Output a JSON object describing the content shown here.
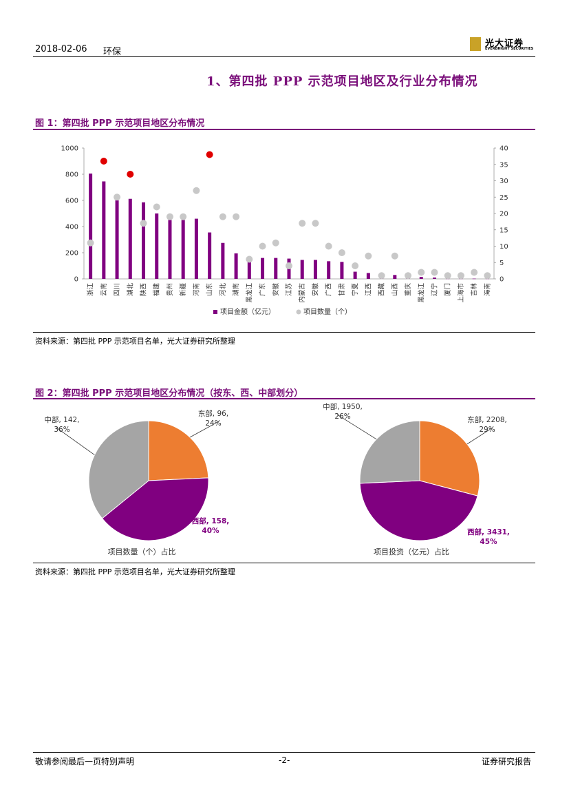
{
  "header": {
    "date": "2018-02-06",
    "sector": "环保",
    "logo_cn": "光大证券",
    "logo_en": "EVERBRIGHT SECURITIES"
  },
  "section_title": "1、第四批 PPP 示范项目地区及行业分布情况",
  "fig1": {
    "title": "图 1：第四批 PPP 示范项目地区分布情况",
    "source": "资料来源：第四批 PPP 示范项目名单，光大证券研究所整理"
  },
  "fig2": {
    "title": "图 2：第四批 PPP 示范项目地区分布情况（按东、西、中部划分）",
    "source": "资料来源：第四批 PPP 示范项目名单，光大证券研究所整理"
  },
  "footer": {
    "left": "敬请参阅最后一页特别声明",
    "center": "-2-",
    "right": "证券研究报告"
  },
  "colors": {
    "accent": "#7a0f7a",
    "bar": "#800080",
    "dot_gray": "#c8c8c8",
    "dot_red": "#e00000",
    "pie_orange": "#ed7d31",
    "pie_purple": "#800080",
    "pie_gray": "#a5a5a5"
  },
  "chart_data": [
    {
      "type": "bar",
      "categories": [
        "浙江",
        "云南",
        "四川",
        "湖北",
        "陕西",
        "福建",
        "贵州",
        "新疆",
        "河南",
        "山东",
        "河北",
        "湖南",
        "黑龙江",
        "广东",
        "安徽",
        "江苏",
        "内蒙古",
        "安徽",
        "广西",
        "甘肃",
        "宁夏",
        "江西",
        "西藏",
        "山西",
        "重庆",
        "黑龙江",
        "辽宁",
        "厦门",
        "上海市",
        "吉林",
        "海南"
      ],
      "series": [
        {
          "name": "项目金额（亿元）",
          "type": "bar",
          "axis": "left",
          "values": [
            805,
            745,
            600,
            612,
            585,
            500,
            450,
            450,
            460,
            355,
            275,
            195,
            170,
            160,
            160,
            155,
            145,
            145,
            135,
            130,
            55,
            45,
            10,
            30,
            5,
            15,
            10,
            2,
            2,
            2,
            2
          ]
        },
        {
          "name": "项目数量（个）",
          "type": "scatter",
          "axis": "right",
          "values": [
            11,
            36,
            25,
            32,
            17,
            22,
            19,
            19,
            27,
            38,
            19,
            19,
            6,
            10,
            11,
            4,
            17,
            17,
            10,
            8,
            4,
            7,
            1,
            7,
            1,
            2,
            2,
            1,
            1,
            2,
            1
          ],
          "highlight_red": [
            1,
            3,
            9
          ]
        }
      ],
      "ylim_left": [
        0,
        1000
      ],
      "yticks_left": [
        0,
        200,
        400,
        600,
        800,
        1000
      ],
      "ylim_right": [
        0,
        40
      ],
      "yticks_right": [
        0,
        5,
        10,
        15,
        20,
        25,
        30,
        35,
        40
      ],
      "legend_position": "bottom"
    },
    {
      "type": "pie",
      "caption": "项目数量（个）占比",
      "slices": [
        {
          "name": "东部",
          "value": 96,
          "percent": "24%",
          "label": "东部, 96,",
          "pct_label": "24%"
        },
        {
          "name": "西部",
          "value": 158,
          "percent": "40%",
          "label": "西部, 158,",
          "pct_label": "40%"
        },
        {
          "name": "中部",
          "value": 142,
          "percent": "36%",
          "label": "中部, 142,",
          "pct_label": "36%"
        }
      ]
    },
    {
      "type": "pie",
      "caption": "项目投资（亿元）占比",
      "slices": [
        {
          "name": "东部",
          "value": 2208,
          "percent": "29%",
          "label": "东部, 2208,",
          "pct_label": "29%"
        },
        {
          "name": "西部",
          "value": 3431,
          "percent": "45%",
          "label": "西部, 3431,",
          "pct_label": "45%"
        },
        {
          "name": "中部",
          "value": 1950,
          "percent": "26%",
          "label": "中部, 1950,",
          "pct_label": "26%"
        }
      ]
    }
  ]
}
